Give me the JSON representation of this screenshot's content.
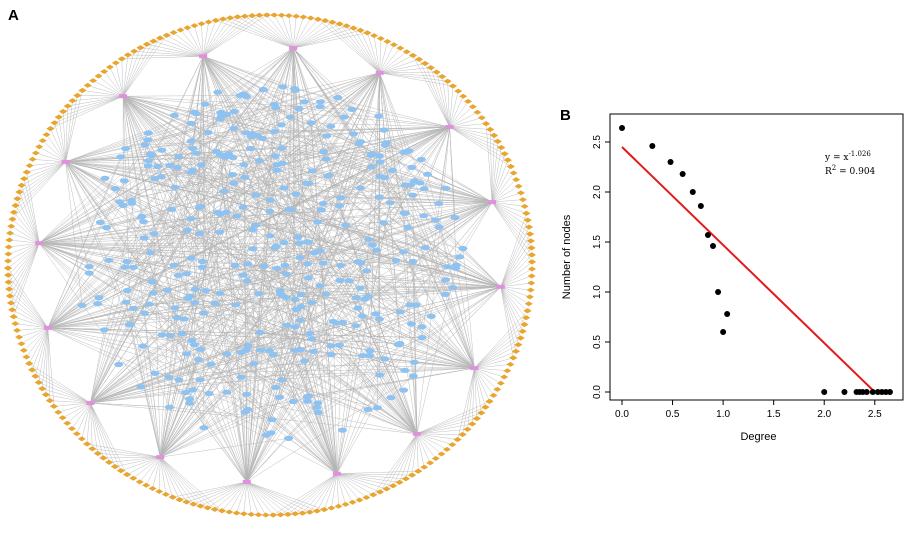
{
  "panel_a": {
    "label": "A",
    "description_type": "network",
    "colors": {
      "edge": "#b5b5b5",
      "hub": "#e38ee0",
      "target": "#8ec2f0",
      "compound": "#e8a530"
    },
    "hub_count": 16
  },
  "chart_data": {
    "type": "scatter",
    "panel_label": "B",
    "title": "",
    "xlabel": "Degree",
    "ylabel": "Number of nodes",
    "xlim": [
      0.0,
      2.7
    ],
    "ylim": [
      0.0,
      2.7
    ],
    "xticks": [
      "0.0",
      "0.5",
      "1.0",
      "1.5",
      "2.0",
      "2.5"
    ],
    "yticks": [
      "0.0",
      "0.5",
      "1.0",
      "1.5",
      "2.0",
      "2.5"
    ],
    "points": [
      [
        0.0,
        2.64
      ],
      [
        0.3,
        2.46
      ],
      [
        0.48,
        2.3
      ],
      [
        0.6,
        2.18
      ],
      [
        0.7,
        2.0
      ],
      [
        0.78,
        1.86
      ],
      [
        0.85,
        1.57
      ],
      [
        0.9,
        1.46
      ],
      [
        0.95,
        1.0
      ],
      [
        1.0,
        0.6
      ],
      [
        1.04,
        0.78
      ],
      [
        2.0,
        0.0
      ],
      [
        2.2,
        0.0
      ],
      [
        2.32,
        0.0
      ],
      [
        2.35,
        0.0
      ],
      [
        2.38,
        0.0
      ],
      [
        2.42,
        0.0
      ],
      [
        2.48,
        0.0
      ],
      [
        2.53,
        0.0
      ],
      [
        2.57,
        0.0
      ],
      [
        2.61,
        0.0
      ],
      [
        2.65,
        0.0
      ]
    ],
    "fit_line": {
      "x": [
        0.0,
        2.5
      ],
      "y": [
        2.45,
        0.0
      ],
      "color": "#e31a1c"
    },
    "equation": {
      "y_text": "y = x",
      "exponent": "-1.026",
      "r_text": "R",
      "r_exponent": "2",
      "r_value": " = 0.904"
    }
  }
}
